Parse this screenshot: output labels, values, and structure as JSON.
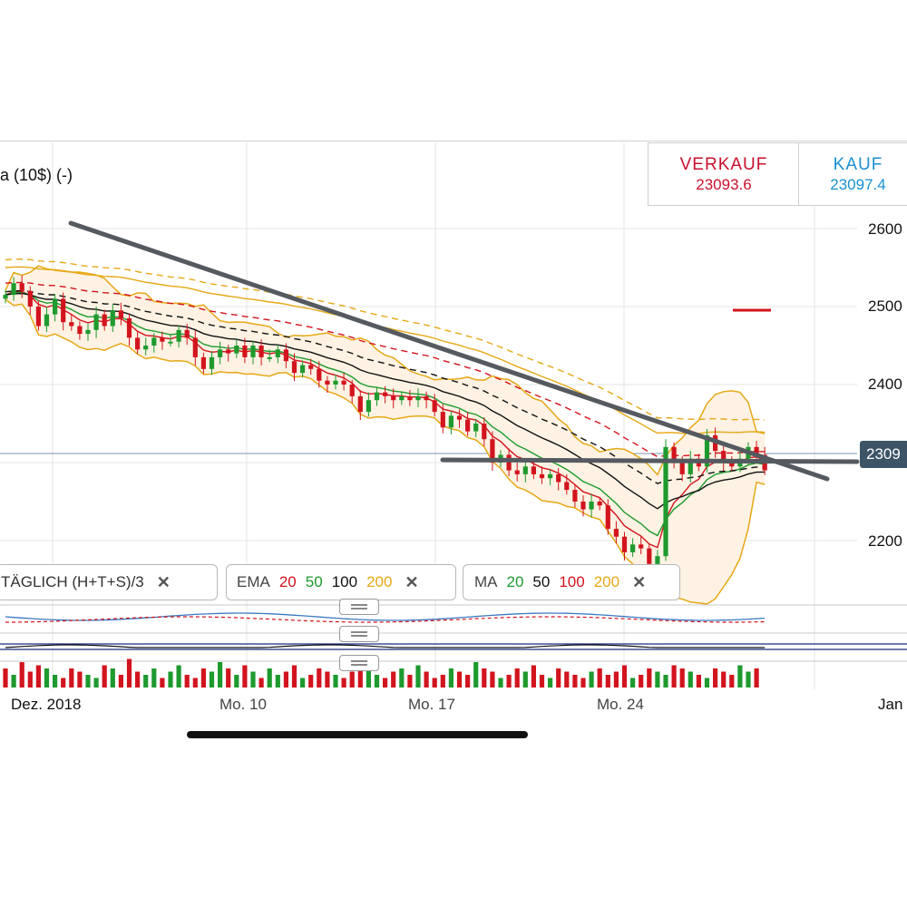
{
  "header": {
    "title": "a (10$) (-)",
    "sell_label": "VERKAUF",
    "sell_price": "23093.6",
    "buy_label": "KAUF",
    "buy_price": "23097.4"
  },
  "current_price_label": "2309",
  "indicators": {
    "typical": {
      "label": "TÄGLICH  (H+T+S)/3",
      "close": "✕"
    },
    "ema": {
      "label": "EMA",
      "p1": "20",
      "p2": "50",
      "p3": "100",
      "p4": "200",
      "close": "✕"
    },
    "ma": {
      "label": "MA",
      "p1": "20",
      "p2": "50",
      "p3": "100",
      "p4": "200",
      "close": "✕"
    }
  },
  "colors": {
    "up": "#1e9a2e",
    "down": "#d2141e",
    "gold": "#e6a817",
    "black": "#111111",
    "trend": "#555a60",
    "grid": "#e4e4e4"
  },
  "chart_data": {
    "type": "candlestick",
    "title": "",
    "xlabel": "",
    "ylabel": "",
    "ylim": [
      22000,
      26200
    ],
    "yticks": [
      22000,
      24000,
      25000,
      26000
    ],
    "ytick_labels": [
      "2200",
      "2400",
      "2500",
      "2600"
    ],
    "x_labels": [
      "Dez. 2018",
      "Mo. 10",
      "Mo. 17",
      "Mo. 24",
      "Jan"
    ],
    "current_price": 23095,
    "candles_start": 25150,
    "candles_delta": [
      150,
      -100,
      -200,
      -250,
      150,
      200,
      -300,
      -50,
      -100,
      50,
      200,
      -150,
      200,
      -100,
      -250,
      -150,
      50,
      100,
      -50,
      0,
      150,
      -100,
      -250,
      -150,
      150,
      100,
      -50,
      100,
      -150,
      150,
      -150,
      0,
      100,
      -150,
      -150,
      100,
      -50,
      -150,
      -50,
      50,
      -50,
      -150,
      -200,
      150,
      100,
      -50,
      -50,
      50,
      -50,
      50,
      -50,
      -150,
      -200,
      150,
      -50,
      -150,
      100,
      -200,
      -300,
      100,
      -200,
      -50,
      100,
      -100,
      -50,
      50,
      -100,
      -100,
      -150,
      -100,
      100,
      -50,
      -300,
      -100,
      -200,
      100,
      -50,
      -200,
      100,
      1400,
      -200,
      -150,
      200,
      -100,
      400,
      -200,
      -150,
      -50,
      100,
      150,
      -100,
      -200
    ],
    "volume_values": [
      30,
      20,
      40,
      25,
      35,
      30,
      20,
      15,
      30,
      25,
      20,
      15,
      35,
      30,
      20,
      45,
      25,
      20,
      30,
      15,
      25,
      35,
      20,
      15,
      30,
      25,
      40,
      30,
      20,
      35,
      25,
      15,
      30,
      20,
      25,
      35,
      15,
      20,
      30,
      25,
      20,
      15,
      25,
      35,
      30,
      20,
      15,
      25,
      30,
      20,
      35,
      25,
      15,
      20,
      30,
      25,
      20,
      40,
      30,
      25,
      15,
      20,
      30,
      25,
      35,
      20,
      15,
      30,
      25,
      20,
      15,
      25,
      30,
      20,
      25,
      35,
      15,
      20,
      30,
      25,
      20,
      35,
      30,
      25,
      20,
      15,
      30,
      25,
      20,
      35,
      25,
      30
    ]
  }
}
